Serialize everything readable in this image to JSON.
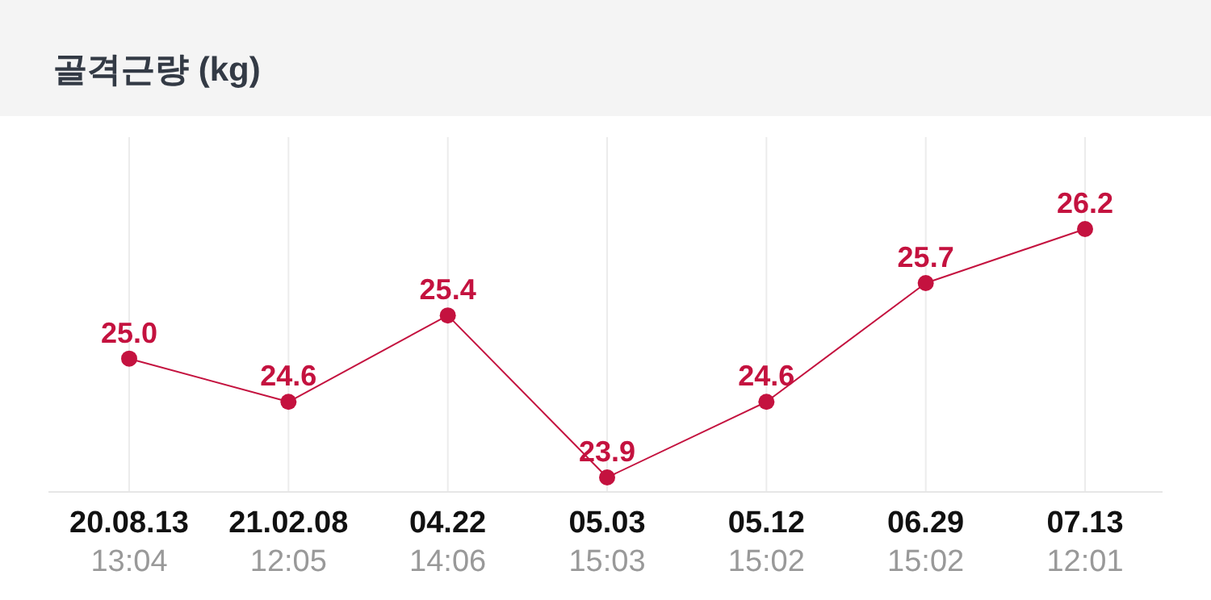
{
  "chart_data": {
    "type": "line",
    "title": "골격근량 (kg)",
    "categories": [
      "20.08.13\n13:04",
      "21.02.08\n12:05",
      "04.22\n14:06",
      "05.03\n15:03",
      "05.12\n15:02",
      "06.29\n15:02",
      "07.13\n12:01"
    ],
    "series": [
      {
        "color": "#c4123f",
        "values": [
          25.0,
          24.6,
          25.4,
          23.9,
          24.6,
          25.7,
          26.2
        ],
        "value_labels": [
          "25.0",
          "24.6",
          "25.4",
          "23.9",
          "24.6",
          "25.7",
          "26.2"
        ]
      }
    ],
    "grid": "x",
    "marker": "circle",
    "line_style": "solid"
  }
}
